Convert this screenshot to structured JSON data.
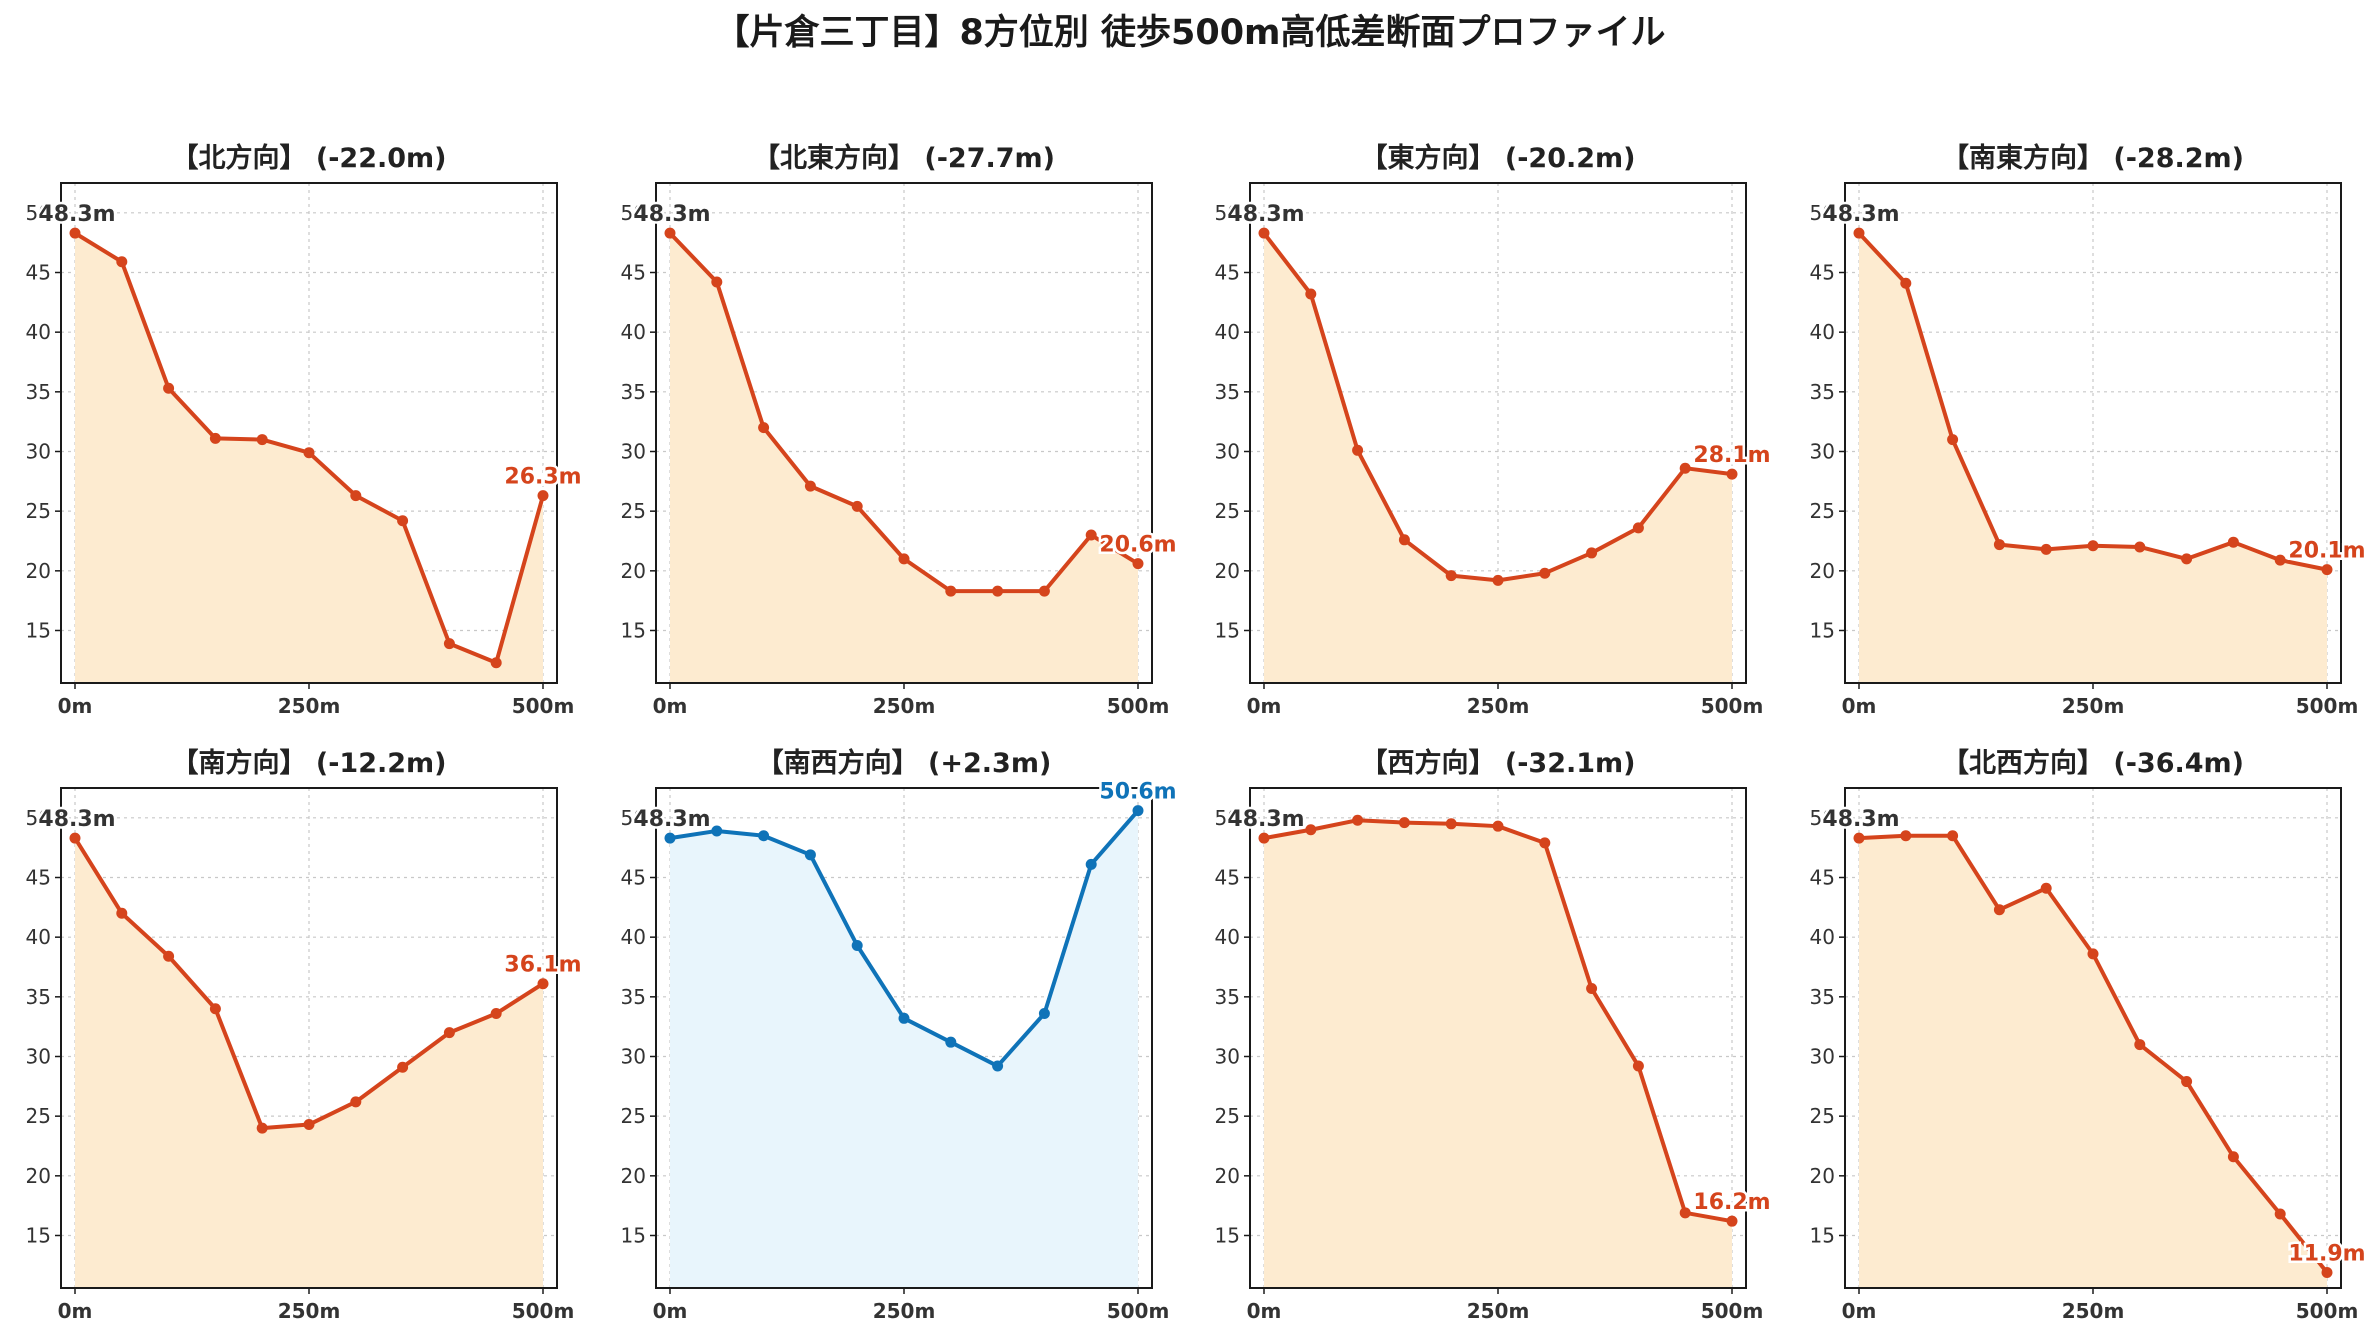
{
  "title": "【片倉三丁目】8方位別 徒歩500m高低差断面プロファイル",
  "colors": {
    "down_line": "#d5441c",
    "down_fill": "#fdebd0",
    "up_line": "#0f73b8",
    "up_fill": "#e8f5fc",
    "start_label": "#333333",
    "grid": "#c8c8c8"
  },
  "chart_data": [
    {
      "type": "line",
      "title": "【北方向】 (-22.0m)",
      "x": [
        0,
        50,
        100,
        150,
        200,
        250,
        300,
        350,
        400,
        450,
        500
      ],
      "values": [
        48.3,
        45.9,
        35.3,
        31.1,
        31.0,
        29.9,
        26.3,
        24.2,
        13.9,
        12.3,
        26.3
      ],
      "x_ticks": [
        "0m",
        "250m",
        "500m"
      ],
      "y_ticks": [
        "50",
        "45",
        "40",
        "35",
        "30",
        "25",
        "20",
        "15"
      ],
      "ylim": [
        10.6,
        52.5
      ],
      "start_label": "48.3m",
      "end_label": "26.3m",
      "trend": "down"
    },
    {
      "type": "line",
      "title": "【北東方向】 (-27.7m)",
      "x": [
        0,
        50,
        100,
        150,
        200,
        250,
        300,
        350,
        400,
        450,
        500
      ],
      "values": [
        48.3,
        44.2,
        32.0,
        27.1,
        25.4,
        21.0,
        18.3,
        18.3,
        18.3,
        23.0,
        20.6
      ],
      "x_ticks": [
        "0m",
        "250m",
        "500m"
      ],
      "y_ticks": [
        "50",
        "45",
        "40",
        "35",
        "30",
        "25",
        "20",
        "15"
      ],
      "ylim": [
        10.6,
        52.5
      ],
      "start_label": "48.3m",
      "end_label": "20.6m",
      "trend": "down"
    },
    {
      "type": "line",
      "title": "【東方向】 (-20.2m)",
      "x": [
        0,
        50,
        100,
        150,
        200,
        250,
        300,
        350,
        400,
        450,
        500
      ],
      "values": [
        48.3,
        43.2,
        30.1,
        22.6,
        19.6,
        19.2,
        19.8,
        21.5,
        23.6,
        28.6,
        28.1
      ],
      "x_ticks": [
        "0m",
        "250m",
        "500m"
      ],
      "y_ticks": [
        "50",
        "45",
        "40",
        "35",
        "30",
        "25",
        "20",
        "15"
      ],
      "ylim": [
        10.6,
        52.5
      ],
      "start_label": "48.3m",
      "end_label": "28.1m",
      "trend": "down"
    },
    {
      "type": "line",
      "title": "【南東方向】 (-28.2m)",
      "x": [
        0,
        50,
        100,
        150,
        200,
        250,
        300,
        350,
        400,
        450,
        500
      ],
      "values": [
        48.3,
        44.1,
        31.0,
        22.2,
        21.8,
        22.1,
        22.0,
        21.0,
        22.4,
        20.9,
        20.1
      ],
      "x_ticks": [
        "0m",
        "250m",
        "500m"
      ],
      "y_ticks": [
        "50",
        "45",
        "40",
        "35",
        "30",
        "25",
        "20",
        "15"
      ],
      "ylim": [
        10.6,
        52.5
      ],
      "start_label": "48.3m",
      "end_label": "20.1m",
      "trend": "down"
    },
    {
      "type": "line",
      "title": "【南方向】 (-12.2m)",
      "x": [
        0,
        50,
        100,
        150,
        200,
        250,
        300,
        350,
        400,
        450,
        500
      ],
      "values": [
        48.3,
        42.0,
        38.4,
        34.0,
        24.0,
        24.3,
        26.2,
        29.1,
        32.0,
        33.6,
        36.1
      ],
      "x_ticks": [
        "0m",
        "250m",
        "500m"
      ],
      "y_ticks": [
        "50",
        "45",
        "40",
        "35",
        "30",
        "25",
        "20",
        "15"
      ],
      "ylim": [
        10.6,
        52.5
      ],
      "start_label": "48.3m",
      "end_label": "36.1m",
      "trend": "down"
    },
    {
      "type": "line",
      "title": "【南西方向】 (+2.3m)",
      "x": [
        0,
        50,
        100,
        150,
        200,
        250,
        300,
        350,
        400,
        450,
        500
      ],
      "values": [
        48.3,
        48.9,
        48.5,
        46.9,
        39.3,
        33.2,
        31.2,
        29.2,
        33.6,
        46.1,
        50.6
      ],
      "x_ticks": [
        "0m",
        "250m",
        "500m"
      ],
      "y_ticks": [
        "50",
        "45",
        "40",
        "35",
        "30",
        "25",
        "20",
        "15"
      ],
      "ylim": [
        10.6,
        52.5
      ],
      "start_label": "48.3m",
      "end_label": "50.6m",
      "trend": "up"
    },
    {
      "type": "line",
      "title": "【西方向】 (-32.1m)",
      "x": [
        0,
        50,
        100,
        150,
        200,
        250,
        300,
        350,
        400,
        450,
        500
      ],
      "values": [
        48.3,
        49.0,
        49.8,
        49.6,
        49.5,
        49.3,
        47.9,
        35.7,
        29.2,
        16.9,
        16.2
      ],
      "x_ticks": [
        "0m",
        "250m",
        "500m"
      ],
      "y_ticks": [
        "50",
        "45",
        "40",
        "35",
        "30",
        "25",
        "20",
        "15"
      ],
      "ylim": [
        10.6,
        52.5
      ],
      "start_label": "48.3m",
      "end_label": "16.2m",
      "trend": "down"
    },
    {
      "type": "line",
      "title": "【北西方向】 (-36.4m)",
      "x": [
        0,
        50,
        100,
        150,
        200,
        250,
        300,
        350,
        400,
        450,
        500
      ],
      "values": [
        48.3,
        48.5,
        48.5,
        42.3,
        44.1,
        38.6,
        31.0,
        27.9,
        21.6,
        16.8,
        11.9
      ],
      "x_ticks": [
        "0m",
        "250m",
        "500m"
      ],
      "y_ticks": [
        "50",
        "45",
        "40",
        "35",
        "30",
        "25",
        "20",
        "15"
      ],
      "ylim": [
        10.6,
        52.5
      ],
      "start_label": "48.3m",
      "end_label": "11.9m",
      "trend": "down"
    }
  ]
}
